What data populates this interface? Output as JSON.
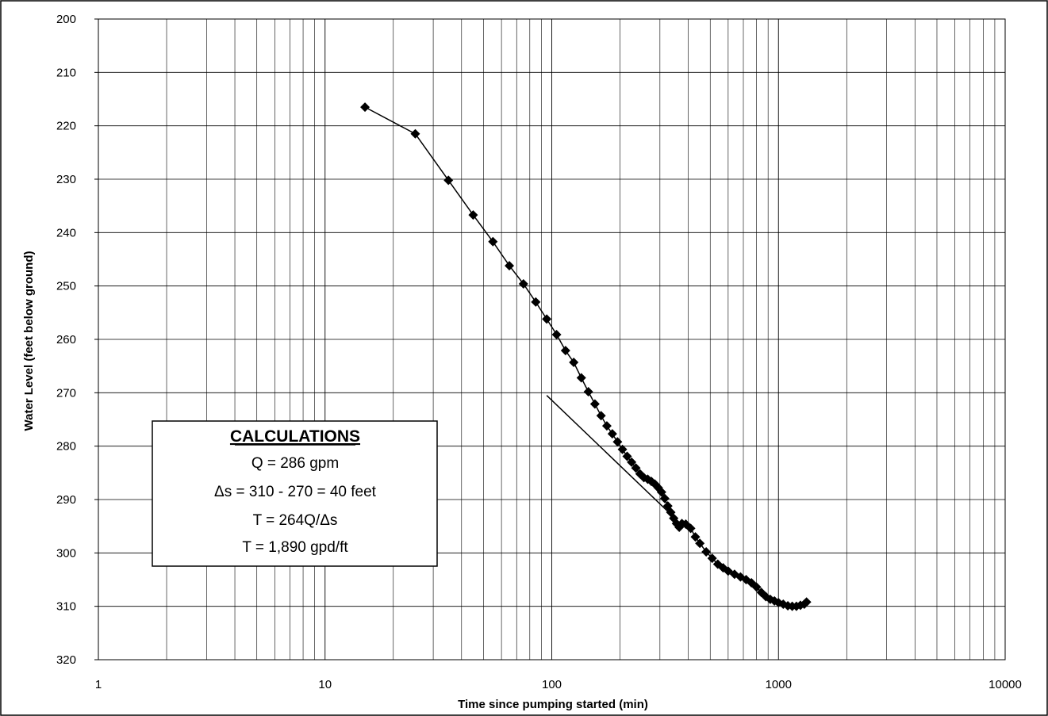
{
  "chart_data": {
    "type": "scatter",
    "xscale": "log",
    "xlim": [
      1,
      10000
    ],
    "ylim": [
      200,
      320
    ],
    "y_inverted": true,
    "grid": true,
    "xlabel": "Time since pumping started (min)",
    "ylabel": "Water Level (feet below ground)",
    "x_ticks": [
      "1",
      "10",
      "100",
      "1000",
      "10000"
    ],
    "y_ticks": [
      "200",
      "210",
      "220",
      "230",
      "240",
      "250",
      "260",
      "270",
      "280",
      "290",
      "300",
      "310",
      "320"
    ],
    "marker_color": "#000000",
    "series": [
      {
        "x": [
          15,
          25,
          35,
          45,
          55,
          65,
          75,
          85,
          95,
          105,
          115,
          125,
          135,
          145,
          155,
          165,
          175,
          185,
          195,
          205,
          215,
          225,
          235,
          245,
          255,
          265,
          275,
          285,
          295,
          305,
          315,
          325,
          335,
          345,
          355,
          365,
          375,
          390,
          410,
          430,
          450,
          480,
          510,
          540,
          570,
          600,
          640,
          680,
          720,
          760,
          800,
          840,
          880,
          920,
          960,
          1000,
          1050,
          1100,
          1150,
          1200,
          1250,
          1300,
          1330
        ],
        "y": [
          216.5,
          221.5,
          230.2,
          236.7,
          241.7,
          246.2,
          249.6,
          253.0,
          256.2,
          259.1,
          262.1,
          264.3,
          267.2,
          269.8,
          272.1,
          274.3,
          276.2,
          277.7,
          279.2,
          280.6,
          281.9,
          283.0,
          284.1,
          285.2,
          285.9,
          286.2,
          286.6,
          287.1,
          287.8,
          288.6,
          289.8,
          291.2,
          292.4,
          293.5,
          294.5,
          295.2,
          294.5,
          294.6,
          295.4,
          297.0,
          298.2,
          299.8,
          301.0,
          302.1,
          302.8,
          303.4,
          304.0,
          304.5,
          305.0,
          305.6,
          306.4,
          307.4,
          308.2,
          308.7,
          309.0,
          309.3,
          309.6,
          309.9,
          310.0,
          310.0,
          309.8,
          309.6,
          309.2
        ]
      }
    ],
    "trend_line": {
      "x": [
        95,
        330
      ],
      "y": [
        270.5,
        292.5
      ]
    }
  },
  "calculations": {
    "title": "CALCULATIONS",
    "lines": [
      "Q = 286 gpm",
      "Δs = 310 - 270  = 40 feet",
      "T = 264Q/Δs",
      "T = 1,890 gpd/ft"
    ]
  }
}
